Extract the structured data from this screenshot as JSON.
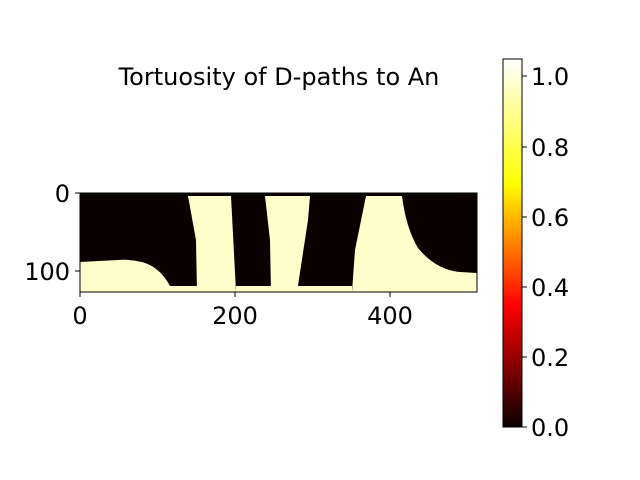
{
  "chart_data": {
    "type": "heatmap",
    "title": "Tortuosity of D-paths to An",
    "colormap": "hot",
    "image_size": {
      "width": 512,
      "height": 128
    },
    "x_ticks": [
      0,
      200,
      400
    ],
    "y_ticks": [
      0,
      100
    ],
    "xlim": [
      0,
      512
    ],
    "ylim": [
      128,
      0
    ],
    "colorbar": {
      "range": [
        0.0,
        1.05
      ],
      "ticks": [
        "0.0",
        "0.2",
        "0.4",
        "0.6",
        "0.8",
        "1.0"
      ]
    },
    "regions": [
      {
        "name": "left-bottom-blob",
        "value": 1.0
      },
      {
        "name": "channel-1",
        "value": 1.0
      },
      {
        "name": "channel-2",
        "value": 1.0
      },
      {
        "name": "channel-3",
        "value": 1.0
      },
      {
        "name": "right-blob",
        "value": 1.0
      }
    ],
    "background_value": 0.0,
    "colors": {
      "low": "#0b0000",
      "high": "#ffffcc"
    }
  }
}
